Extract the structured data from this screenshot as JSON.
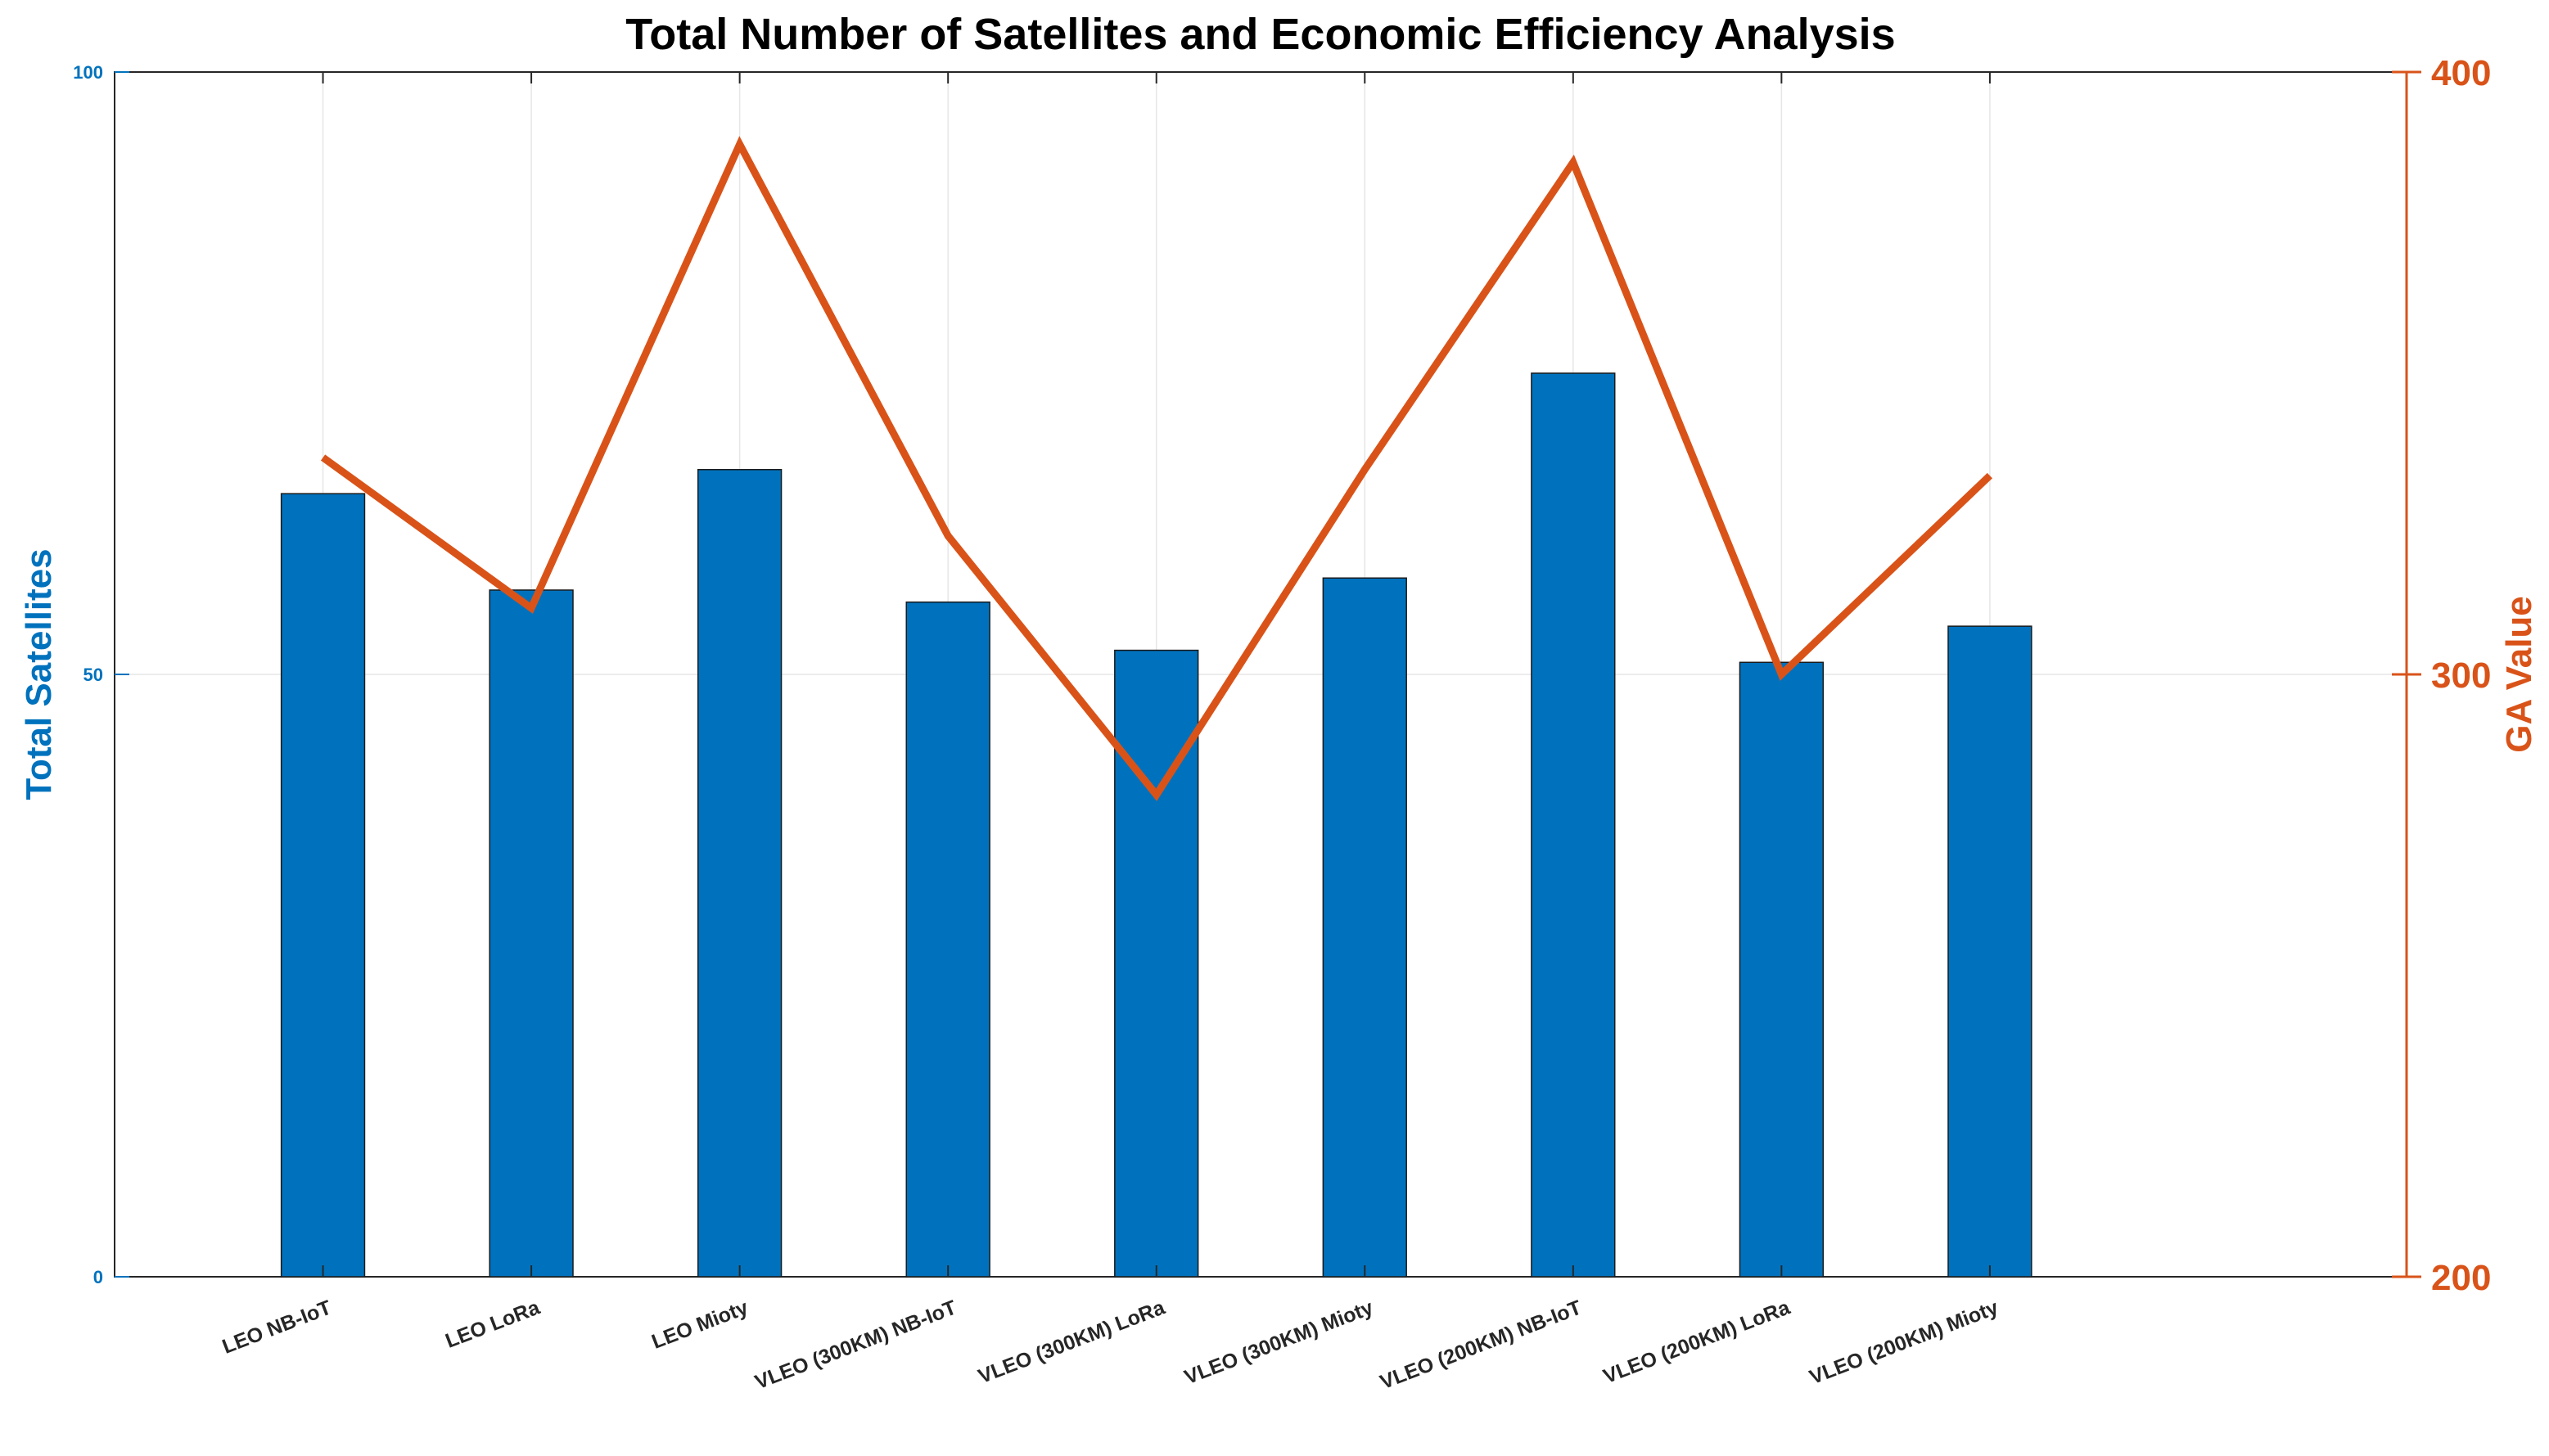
{
  "chart_data": {
    "type": "bar+line",
    "title": "Total Number of Satellites and Economic Efficiency Analysis",
    "categories": [
      "LEO NB-IoT",
      "LEO LoRa",
      "LEO Mioty",
      "VLEO (300KM) NB-IoT",
      "VLEO (300KM) LoRa",
      "VLEO (300KM) Mioty",
      "VLEO (200KM) NB-IoT",
      "VLEO (200KM) LoRa",
      "VLEO (200KM) Mioty"
    ],
    "left_axis": {
      "label": "Total Satellites",
      "ylim": [
        0,
        100
      ],
      "ticks": [
        "0",
        "50",
        "100"
      ],
      "color": "#0072BD"
    },
    "right_axis": {
      "label": "GA Value",
      "ylim": [
        200,
        400
      ],
      "ticks": [
        "200",
        "300",
        "400"
      ],
      "color": "#D95319"
    },
    "series": [
      {
        "name": "Total Satellites",
        "type": "bar",
        "axis": "left",
        "color": "#0072BD",
        "values": [
          65,
          57,
          67,
          56,
          52,
          58,
          75,
          51,
          54
        ]
      },
      {
        "name": "GA Value",
        "type": "line",
        "axis": "right",
        "color": "#D95319",
        "values": [
          336,
          311,
          388,
          323,
          280,
          334,
          385,
          300,
          333
        ]
      }
    ],
    "grid": true
  }
}
